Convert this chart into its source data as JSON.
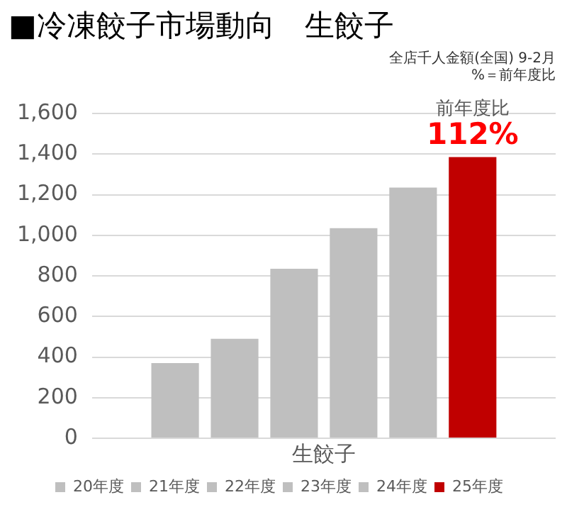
{
  "chart_data": {
    "type": "bar",
    "title": "■冷凍餃子市場動向　生餃子",
    "subtitle": "全店千人金額(全国)  9-2月",
    "annotations": [
      "%＝前年度比",
      "前年度比",
      "112%"
    ],
    "categories": [
      "生餃子"
    ],
    "series": [
      {
        "name": "20年度",
        "color": "#bfbfbf",
        "values": [
          370
        ]
      },
      {
        "name": "21年度",
        "color": "#bfbfbf",
        "values": [
          490
        ]
      },
      {
        "name": "22年度",
        "color": "#bfbfbf",
        "values": [
          835
        ]
      },
      {
        "name": "23年度",
        "color": "#bfbfbf",
        "values": [
          1035
        ]
      },
      {
        "name": "24年度",
        "color": "#bfbfbf",
        "values": [
          1235
        ]
      },
      {
        "name": "25年度",
        "color": "#c00000",
        "values": [
          1385
        ]
      }
    ],
    "ylim": [
      0,
      1600
    ],
    "yticks": [
      0,
      200,
      400,
      600,
      800,
      {
        "value": 1000,
        "label": "1,000"
      },
      {
        "value": 1200,
        "label": "1,200"
      },
      {
        "value": 1400,
        "label": "1,400"
      },
      {
        "value": 1600,
        "label": "1,600"
      }
    ],
    "grid": "y",
    "legend": "bottom"
  }
}
